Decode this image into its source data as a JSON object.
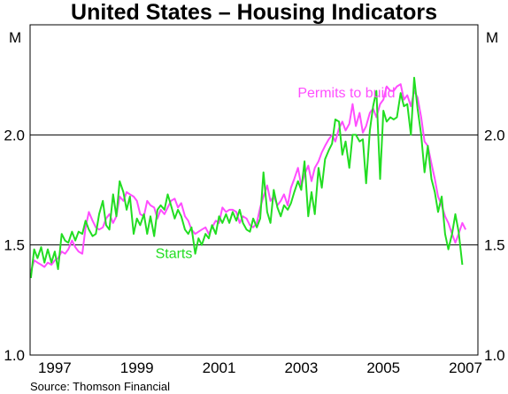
{
  "chart_data": {
    "type": "line",
    "title": "United States – Housing Indicators",
    "unit_left": "M",
    "unit_right": "M",
    "source": "Source: Thomson Financial",
    "x_range": [
      1996.4,
      2007.3
    ],
    "ylim": [
      1.0,
      2.5
    ],
    "y_ticks": [
      {
        "value": 1.0,
        "label": "1.0"
      },
      {
        "value": 1.5,
        "label": "1.5"
      },
      {
        "value": 2.0,
        "label": "2.0"
      }
    ],
    "x_ticks": [
      {
        "value": 1997,
        "label": "1997"
      },
      {
        "value": 1999,
        "label": "1999"
      },
      {
        "value": 2001,
        "label": "2001"
      },
      {
        "value": 2003,
        "label": "2003"
      },
      {
        "value": 2005,
        "label": "2005"
      },
      {
        "value": 2007,
        "label": "2007"
      }
    ],
    "gridlines": [
      1.5,
      2.0
    ],
    "series": [
      {
        "name": "Permits to build",
        "color": "#ff4dff",
        "label_at": [
          2004.1,
          2.17
        ],
        "points": [
          [
            1996.42,
            1.38
          ],
          [
            1996.5,
            1.43
          ],
          [
            1996.58,
            1.42
          ],
          [
            1996.67,
            1.41
          ],
          [
            1996.75,
            1.4
          ],
          [
            1996.83,
            1.42
          ],
          [
            1996.92,
            1.41
          ],
          [
            1997.0,
            1.43
          ],
          [
            1997.08,
            1.44
          ],
          [
            1997.17,
            1.47
          ],
          [
            1997.25,
            1.46
          ],
          [
            1997.33,
            1.48
          ],
          [
            1997.42,
            1.52
          ],
          [
            1997.5,
            1.49
          ],
          [
            1997.58,
            1.47
          ],
          [
            1997.67,
            1.46
          ],
          [
            1997.75,
            1.58
          ],
          [
            1997.83,
            1.65
          ],
          [
            1997.92,
            1.61
          ],
          [
            1998.0,
            1.58
          ],
          [
            1998.08,
            1.57
          ],
          [
            1998.17,
            1.58
          ],
          [
            1998.25,
            1.62
          ],
          [
            1998.33,
            1.64
          ],
          [
            1998.42,
            1.6
          ],
          [
            1998.5,
            1.63
          ],
          [
            1998.58,
            1.72
          ],
          [
            1998.67,
            1.7
          ],
          [
            1998.75,
            1.74
          ],
          [
            1998.83,
            1.73
          ],
          [
            1998.92,
            1.72
          ],
          [
            1999.0,
            1.7
          ],
          [
            1999.08,
            1.64
          ],
          [
            1999.17,
            1.63
          ],
          [
            1999.25,
            1.7
          ],
          [
            1999.33,
            1.68
          ],
          [
            1999.42,
            1.67
          ],
          [
            1999.5,
            1.62
          ],
          [
            1999.58,
            1.66
          ],
          [
            1999.67,
            1.64
          ],
          [
            1999.75,
            1.67
          ],
          [
            1999.83,
            1.7
          ],
          [
            1999.92,
            1.71
          ],
          [
            2000.0,
            1.67
          ],
          [
            2000.08,
            1.69
          ],
          [
            2000.17,
            1.63
          ],
          [
            2000.25,
            1.61
          ],
          [
            2000.33,
            1.57
          ],
          [
            2000.42,
            1.55
          ],
          [
            2000.5,
            1.56
          ],
          [
            2000.58,
            1.57
          ],
          [
            2000.67,
            1.58
          ],
          [
            2000.75,
            1.55
          ],
          [
            2000.83,
            1.58
          ],
          [
            2000.92,
            1.61
          ],
          [
            2001.0,
            1.6
          ],
          [
            2001.08,
            1.67
          ],
          [
            2001.17,
            1.65
          ],
          [
            2001.25,
            1.66
          ],
          [
            2001.33,
            1.66
          ],
          [
            2001.42,
            1.65
          ],
          [
            2001.5,
            1.6
          ],
          [
            2001.58,
            1.63
          ],
          [
            2001.67,
            1.62
          ],
          [
            2001.75,
            1.59
          ],
          [
            2001.83,
            1.58
          ],
          [
            2001.92,
            1.6
          ],
          [
            2002.0,
            1.67
          ],
          [
            2002.08,
            1.72
          ],
          [
            2002.17,
            1.77
          ],
          [
            2002.25,
            1.7
          ],
          [
            2002.33,
            1.72
          ],
          [
            2002.42,
            1.68
          ],
          [
            2002.5,
            1.7
          ],
          [
            2002.58,
            1.73
          ],
          [
            2002.67,
            1.68
          ],
          [
            2002.75,
            1.76
          ],
          [
            2002.83,
            1.8
          ],
          [
            2002.92,
            1.85
          ],
          [
            2003.0,
            1.77
          ],
          [
            2003.08,
            1.82
          ],
          [
            2003.17,
            1.86
          ],
          [
            2003.25,
            1.79
          ],
          [
            2003.33,
            1.85
          ],
          [
            2003.42,
            1.88
          ],
          [
            2003.5,
            1.92
          ],
          [
            2003.58,
            1.95
          ],
          [
            2003.67,
            1.98
          ],
          [
            2003.75,
            2.0
          ],
          [
            2003.83,
            1.97
          ],
          [
            2003.92,
            2.03
          ],
          [
            2004.0,
            2.06
          ],
          [
            2004.08,
            2.02
          ],
          [
            2004.17,
            2.05
          ],
          [
            2004.25,
            2.14
          ],
          [
            2004.33,
            2.04
          ],
          [
            2004.42,
            2.1
          ],
          [
            2004.5,
            2.01
          ],
          [
            2004.58,
            2.04
          ],
          [
            2004.67,
            2.1
          ],
          [
            2004.75,
            2.12
          ],
          [
            2004.83,
            2.08
          ],
          [
            2004.92,
            2.14
          ],
          [
            2005.0,
            2.16
          ],
          [
            2005.08,
            2.22
          ],
          [
            2005.17,
            2.2
          ],
          [
            2005.25,
            2.2
          ],
          [
            2005.33,
            2.22
          ],
          [
            2005.42,
            2.23
          ],
          [
            2005.5,
            2.16
          ],
          [
            2005.58,
            2.18
          ],
          [
            2005.67,
            2.13
          ],
          [
            2005.75,
            2.2
          ],
          [
            2005.83,
            2.17
          ],
          [
            2005.92,
            2.08
          ],
          [
            2006.0,
            1.97
          ],
          [
            2006.08,
            1.95
          ],
          [
            2006.17,
            1.87
          ],
          [
            2006.25,
            1.8
          ],
          [
            2006.33,
            1.72
          ],
          [
            2006.42,
            1.68
          ],
          [
            2006.5,
            1.63
          ],
          [
            2006.58,
            1.6
          ],
          [
            2006.67,
            1.55
          ],
          [
            2006.75,
            1.51
          ],
          [
            2006.83,
            1.55
          ],
          [
            2006.92,
            1.6
          ],
          [
            2007.0,
            1.57
          ]
        ]
      },
      {
        "name": "Starts",
        "color": "#22dd22",
        "label_at": [
          1999.9,
          1.44
        ],
        "points": [
          [
            1996.42,
            1.35
          ],
          [
            1996.5,
            1.48
          ],
          [
            1996.58,
            1.44
          ],
          [
            1996.67,
            1.49
          ],
          [
            1996.75,
            1.42
          ],
          [
            1996.83,
            1.48
          ],
          [
            1996.92,
            1.42
          ],
          [
            1997.0,
            1.47
          ],
          [
            1997.08,
            1.39
          ],
          [
            1997.17,
            1.55
          ],
          [
            1997.25,
            1.52
          ],
          [
            1997.33,
            1.51
          ],
          [
            1997.42,
            1.56
          ],
          [
            1997.5,
            1.52
          ],
          [
            1997.58,
            1.56
          ],
          [
            1997.67,
            1.55
          ],
          [
            1997.75,
            1.61
          ],
          [
            1997.83,
            1.57
          ],
          [
            1997.92,
            1.54
          ],
          [
            1998.0,
            1.55
          ],
          [
            1998.08,
            1.64
          ],
          [
            1998.17,
            1.7
          ],
          [
            1998.25,
            1.59
          ],
          [
            1998.33,
            1.57
          ],
          [
            1998.42,
            1.73
          ],
          [
            1998.5,
            1.63
          ],
          [
            1998.58,
            1.79
          ],
          [
            1998.67,
            1.74
          ],
          [
            1998.75,
            1.66
          ],
          [
            1998.83,
            1.72
          ],
          [
            1998.92,
            1.55
          ],
          [
            1999.0,
            1.62
          ],
          [
            1999.08,
            1.59
          ],
          [
            1999.17,
            1.64
          ],
          [
            1999.25,
            1.55
          ],
          [
            1999.33,
            1.63
          ],
          [
            1999.42,
            1.54
          ],
          [
            1999.5,
            1.66
          ],
          [
            1999.58,
            1.68
          ],
          [
            1999.67,
            1.66
          ],
          [
            1999.75,
            1.73
          ],
          [
            1999.83,
            1.68
          ],
          [
            1999.92,
            1.62
          ],
          [
            2000.0,
            1.66
          ],
          [
            2000.08,
            1.63
          ],
          [
            2000.17,
            1.57
          ],
          [
            2000.25,
            1.55
          ],
          [
            2000.33,
            1.58
          ],
          [
            2000.42,
            1.46
          ],
          [
            2000.5,
            1.53
          ],
          [
            2000.58,
            1.5
          ],
          [
            2000.67,
            1.55
          ],
          [
            2000.75,
            1.53
          ],
          [
            2000.83,
            1.59
          ],
          [
            2000.92,
            1.55
          ],
          [
            2001.0,
            1.63
          ],
          [
            2001.08,
            1.6
          ],
          [
            2001.17,
            1.64
          ],
          [
            2001.25,
            1.6
          ],
          [
            2001.33,
            1.65
          ],
          [
            2001.42,
            1.61
          ],
          [
            2001.5,
            1.66
          ],
          [
            2001.58,
            1.6
          ],
          [
            2001.67,
            1.57
          ],
          [
            2001.75,
            1.56
          ],
          [
            2001.83,
            1.62
          ],
          [
            2001.92,
            1.58
          ],
          [
            2002.0,
            1.62
          ],
          [
            2002.08,
            1.83
          ],
          [
            2002.17,
            1.65
          ],
          [
            2002.25,
            1.6
          ],
          [
            2002.33,
            1.75
          ],
          [
            2002.42,
            1.67
          ],
          [
            2002.5,
            1.63
          ],
          [
            2002.58,
            1.68
          ],
          [
            2002.67,
            1.66
          ],
          [
            2002.75,
            1.69
          ],
          [
            2002.83,
            1.74
          ],
          [
            2002.92,
            1.79
          ],
          [
            2003.0,
            1.75
          ],
          [
            2003.08,
            1.88
          ],
          [
            2003.17,
            1.63
          ],
          [
            2003.25,
            1.74
          ],
          [
            2003.33,
            1.64
          ],
          [
            2003.42,
            1.85
          ],
          [
            2003.5,
            1.76
          ],
          [
            2003.58,
            1.89
          ],
          [
            2003.67,
            1.93
          ],
          [
            2003.75,
            1.96
          ],
          [
            2003.83,
            2.07
          ],
          [
            2003.92,
            2.06
          ],
          [
            2004.0,
            1.91
          ],
          [
            2004.08,
            1.97
          ],
          [
            2004.17,
            1.85
          ],
          [
            2004.25,
            2.0
          ],
          [
            2004.33,
            2.0
          ],
          [
            2004.42,
            1.97
          ],
          [
            2004.5,
            1.98
          ],
          [
            2004.58,
            1.78
          ],
          [
            2004.67,
            2.02
          ],
          [
            2004.75,
            2.13
          ],
          [
            2004.83,
            2.2
          ],
          [
            2004.92,
            1.8
          ],
          [
            2005.0,
            2.11
          ],
          [
            2005.08,
            2.06
          ],
          [
            2005.17,
            2.08
          ],
          [
            2005.25,
            2.07
          ],
          [
            2005.33,
            2.08
          ],
          [
            2005.42,
            2.19
          ],
          [
            2005.5,
            2.13
          ],
          [
            2005.58,
            2.14
          ],
          [
            2005.67,
            2.0
          ],
          [
            2005.75,
            2.26
          ],
          [
            2005.83,
            2.12
          ],
          [
            2005.92,
            2.0
          ],
          [
            2006.0,
            1.83
          ],
          [
            2006.08,
            1.95
          ],
          [
            2006.17,
            1.8
          ],
          [
            2006.25,
            1.74
          ],
          [
            2006.33,
            1.65
          ],
          [
            2006.42,
            1.72
          ],
          [
            2006.5,
            1.55
          ],
          [
            2006.58,
            1.48
          ],
          [
            2006.67,
            1.55
          ],
          [
            2006.75,
            1.64
          ],
          [
            2006.83,
            1.56
          ],
          [
            2006.92,
            1.41
          ]
        ]
      }
    ]
  }
}
